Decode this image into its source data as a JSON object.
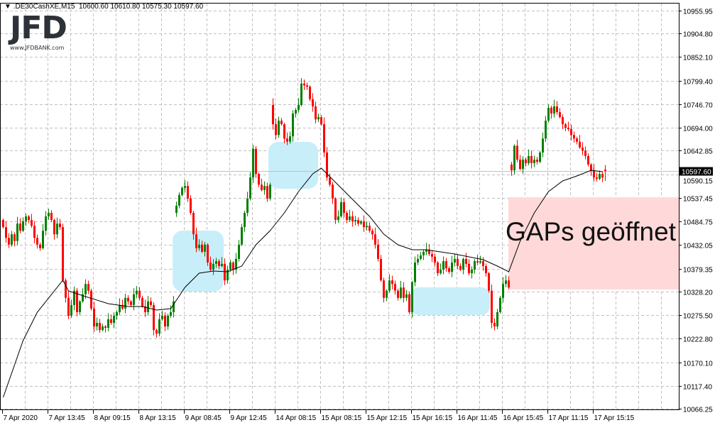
{
  "header": {
    "symbol": ".DE30CashXE,M15",
    "ohlc": "10600.60 10610.80 10575.30 10597.60",
    "menu_icon": "triangle-down-icon"
  },
  "logo": {
    "brand": "JFD",
    "url": "www.JFDBANK.com"
  },
  "annotation": {
    "text": "GAPs geöffnet",
    "gap_fill_color": "#ffd9d9",
    "highlight_color": "#c8eefa"
  },
  "chart_data": {
    "type": "candlestick",
    "symbol": ".DE30CashXE",
    "timeframe": "M15",
    "ylim": [
      10066.25,
      10955.95
    ],
    "grid": true,
    "colors": {
      "bull": "#008000",
      "bear": "#ff0000",
      "ma": "#000000",
      "price_line": "#c0c0c0"
    },
    "y_ticks": [
      10955.95,
      10904.8,
      10852.1,
      10799.4,
      10746.7,
      10694.0,
      10642.85,
      10590.15,
      10537.45,
      10484.75,
      10432.05,
      10379.35,
      10328.2,
      10275.5,
      10222.8,
      10170.1,
      10117.4,
      10066.25
    ],
    "y_tick_labels": [
      "10955.95",
      "10904.80",
      "10852.10",
      "10799.40",
      "10746.70",
      "10694.00",
      "10642.85",
      "10590.15",
      "10537.45",
      "10484.75",
      "10432.05",
      "10379.35",
      "10328.20",
      "10275.50",
      "10222.80",
      "10170.10",
      "10117.40",
      "10066.25"
    ],
    "x_tick_labels": [
      "7 Apr 2020",
      "7 Apr 13:45",
      "8 Apr 09:15",
      "8 Apr 13:15",
      "9 Apr 08:45",
      "9 Apr 12:45",
      "14 Apr 08:15",
      "15 Apr 08:15",
      "15 Apr 12:15",
      "15 Apr 16:15",
      "16 Apr 11:45",
      "16 Apr 15:45",
      "17 Apr 11:15",
      "17 Apr 15:15"
    ],
    "current_price": "10597.60",
    "first_open": 10488,
    "last_candle": {
      "open": 10600.6,
      "high": 10610.8,
      "low": 10575.3,
      "close": 10597.6
    },
    "gap_opens": {
      "61": 10504,
      "95": 10745,
      "179": 10612
    },
    "closes": [
      10472,
      10448,
      10433,
      10456,
      10441,
      10480,
      10464,
      10485,
      10496,
      10488,
      10475,
      10448,
      10433,
      10425,
      10464,
      10496,
      10504,
      10488,
      10456,
      10480,
      10472,
      10353,
      10314,
      10274,
      10298,
      10330,
      10282,
      10306,
      10322,
      10345,
      10330,
      10290,
      10250,
      10258,
      10242,
      10250,
      10247,
      10266,
      10258,
      10274,
      10282,
      10298,
      10290,
      10314,
      10306,
      10298,
      10322,
      10330,
      10314,
      10295,
      10282,
      10306,
      10298,
      10242,
      10234,
      10266,
      10274,
      10250,
      10274,
      10282,
      10306,
      10520,
      10544,
      10560,
      10564,
      10536,
      10504,
      10456,
      10425,
      10433,
      10417,
      10433,
      10393,
      10377,
      10390,
      10396,
      10385,
      10390,
      10353,
      10377,
      10393,
      10377,
      10401,
      10433,
      10472,
      10504,
      10536,
      10583,
      10647,
      10591,
      10567,
      10555,
      10564,
      10536,
      10567,
      10702,
      10678,
      10710,
      10702,
      10670,
      10663,
      10675,
      10726,
      10734,
      10745,
      10793,
      10789,
      10786,
      10758,
      10742,
      10713,
      10718,
      10702,
      10639,
      10583,
      10567,
      10536,
      10488,
      10496,
      10528,
      10504,
      10488,
      10496,
      10485,
      10488,
      10480,
      10485,
      10472,
      10475,
      10464,
      10456,
      10433,
      10401,
      10353,
      10314,
      10330,
      10353,
      10345,
      10330,
      10314,
      10337,
      10314,
      10322,
      10282,
      10349,
      10393,
      10401,
      10409,
      10417,
      10422,
      10412,
      10406,
      10393,
      10369,
      10377,
      10396,
      10380,
      10372,
      10393,
      10401,
      10385,
      10377,
      10401,
      10390,
      10369,
      10377,
      10396,
      10393,
      10396,
      10385,
      10369,
      10330,
      10258,
      10250,
      10282,
      10314,
      10345,
      10353,
      10337,
      10599,
      10654,
      10623,
      10602,
      10623,
      10615,
      10631,
      10615,
      10623,
      10618,
      10639,
      10670,
      10710,
      10739,
      10726,
      10742,
      10729,
      10718,
      10702,
      10694,
      10691,
      10678,
      10670,
      10663,
      10650,
      10643,
      10631,
      10612,
      10599,
      10583,
      10580,
      10591,
      10583,
      10597.6
    ],
    "moving_average": [
      [
        0,
        10091.6
      ],
      [
        7,
        10218.5
      ],
      [
        12,
        10281.9
      ],
      [
        17,
        10321.5
      ],
      [
        21,
        10353.3
      ],
      [
        23,
        10329.5
      ],
      [
        29,
        10316.8
      ],
      [
        37,
        10301.0
      ],
      [
        44,
        10294.6
      ],
      [
        49,
        10294.6
      ],
      [
        54,
        10286.7
      ],
      [
        59,
        10289.8
      ],
      [
        64,
        10337.4
      ],
      [
        69,
        10369.1
      ],
      [
        74,
        10373.9
      ],
      [
        79,
        10372.3
      ],
      [
        84,
        10385.0
      ],
      [
        89,
        10432.6
      ],
      [
        94,
        10464.3
      ],
      [
        99,
        10503.9
      ],
      [
        104,
        10551.6
      ],
      [
        109,
        10591.2
      ],
      [
        112,
        10603.9
      ],
      [
        114,
        10591.2
      ],
      [
        119,
        10559.5
      ],
      [
        124,
        10527.7
      ],
      [
        129,
        10496.0
      ],
      [
        134,
        10456.4
      ],
      [
        139,
        10432.6
      ],
      [
        144,
        10421.5
      ],
      [
        149,
        10421.5
      ],
      [
        154,
        10416.7
      ],
      [
        159,
        10412.0
      ],
      [
        164,
        10405.6
      ],
      [
        169,
        10399.3
      ],
      [
        174,
        10385.0
      ],
      [
        178,
        10372.3
      ],
      [
        182,
        10440.5
      ],
      [
        187,
        10503.9
      ],
      [
        192,
        10551.6
      ],
      [
        197,
        10575.4
      ],
      [
        202,
        10586.4
      ],
      [
        207,
        10599.1
      ],
      [
        211,
        10595.9
      ]
    ]
  }
}
